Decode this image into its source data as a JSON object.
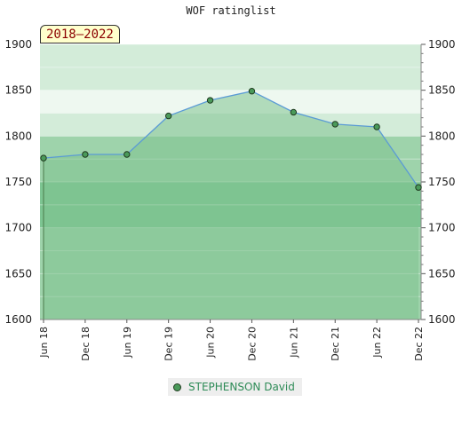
{
  "chart_data": {
    "type": "area",
    "title": "WOF ratinglist",
    "badge": "2018–2022",
    "categories": [
      "Jun 18",
      "Dec 18",
      "Jun 19",
      "Dec 19",
      "Jun 20",
      "Dec 20",
      "Jun 21",
      "Dec 21",
      "Jun 22",
      "Dec 22"
    ],
    "series": [
      {
        "name": "STEPHENSON David",
        "values": [
          1776,
          1780,
          1780,
          1822,
          1839,
          1849,
          1826,
          1813,
          1810,
          1744
        ]
      }
    ],
    "ylim": [
      1600,
      1900
    ],
    "yticks": [
      1600,
      1650,
      1700,
      1750,
      1800,
      1850,
      1900
    ],
    "ytick_labels": [
      "1600",
      "1650",
      "1700",
      "1750",
      "1800",
      "1850",
      "1900"
    ],
    "grid": true,
    "legend": "bottom-center",
    "colors": {
      "line": "#5b9bd5",
      "area": "#7fc38f",
      "marker": "#4a9a5a",
      "band_dark": "#7dc592",
      "band_mid": "#9ed3ab",
      "band_light": "#d3ecd9",
      "band_lightest": "#eef8f0"
    }
  }
}
